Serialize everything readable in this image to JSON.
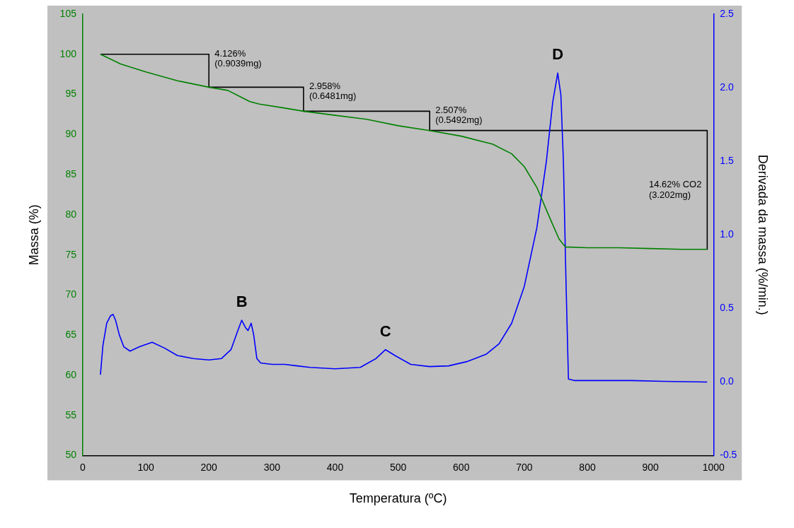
{
  "chart_data": {
    "type": "line",
    "xlabel": "Temperatura (ºC)",
    "ylabel": "Massa (%)",
    "y2label": "Derivada da massa (%/min.)",
    "xlim": [
      0,
      1000
    ],
    "xticks": [
      0,
      100,
      200,
      300,
      400,
      500,
      600,
      700,
      800,
      900,
      1000
    ],
    "ylim": [
      50,
      105
    ],
    "yticks": [
      50,
      55,
      60,
      65,
      70,
      75,
      80,
      85,
      90,
      95,
      100,
      105
    ],
    "y2lim": [
      -0.5,
      2.5
    ],
    "y2ticks": [
      {
        "value": -0.5,
        "label": "-0.5"
      },
      {
        "value": 0,
        "label": "0.0"
      },
      {
        "value": 0.5,
        "label": "0.5"
      },
      {
        "value": 1,
        "label": "1.0"
      },
      {
        "value": 1.5,
        "label": "1.5"
      },
      {
        "value": 2,
        "label": "2.0"
      },
      {
        "value": 2.5,
        "label": "2.5"
      }
    ],
    "grid": false,
    "legend": false,
    "marker": "none",
    "line_style": "solid",
    "series": [
      {
        "color": "#008000",
        "x": [
          28,
          60,
          100,
          150,
          200,
          230,
          250,
          265,
          280,
          320,
          350,
          400,
          450,
          500,
          550,
          600,
          650,
          680,
          700,
          720,
          740,
          755,
          765,
          800,
          850,
          900,
          950,
          990
        ],
        "values": [
          100,
          98.8,
          97.8,
          96.7,
          95.9,
          95.5,
          94.7,
          94.1,
          93.8,
          93.3,
          92.9,
          92.4,
          91.9,
          91.1,
          90.5,
          89.8,
          88.8,
          87.6,
          86,
          83.4,
          79.7,
          77,
          76,
          75.9,
          75.9,
          75.8,
          75.7,
          75.7
        ]
      },
      {
        "color": "#0000ff",
        "axis": "y2",
        "x": [
          28,
          32,
          38,
          44,
          48,
          52,
          58,
          65,
          75,
          90,
          110,
          130,
          150,
          175,
          200,
          220,
          235,
          245,
          252,
          258,
          262,
          267,
          271,
          276,
          282,
          300,
          320,
          340,
          360,
          400,
          440,
          465,
          480,
          495,
          520,
          550,
          580,
          610,
          640,
          660,
          680,
          700,
          720,
          735,
          745,
          753,
          758,
          762,
          766,
          770,
          780,
          820,
          870,
          920,
          990
        ],
        "values": [
          0.05,
          0.25,
          0.4,
          0.45,
          0.46,
          0.42,
          0.32,
          0.24,
          0.21,
          0.24,
          0.27,
          0.23,
          0.18,
          0.16,
          0.15,
          0.16,
          0.22,
          0.34,
          0.42,
          0.37,
          0.35,
          0.4,
          0.32,
          0.16,
          0.13,
          0.12,
          0.12,
          0.11,
          0.1,
          0.09,
          0.1,
          0.16,
          0.22,
          0.18,
          0.12,
          0.105,
          0.11,
          0.14,
          0.19,
          0.26,
          0.4,
          0.65,
          1.05,
          1.5,
          1.9,
          2.1,
          1.95,
          1.5,
          0.7,
          0.02,
          0.01,
          0.01,
          0.01,
          0.005,
          0.0
        ]
      },
      {
        "color": "#000000",
        "x": [
          28,
          200,
          200,
          350,
          350,
          550,
          550,
          990,
          990
        ],
        "values": [
          100,
          100,
          95.9,
          95.9,
          92.9,
          92.9,
          90.5,
          90.5,
          75.7
        ]
      }
    ],
    "annotations": [
      {
        "text": "4.126%\n(0.9039mg)",
        "x": 200,
        "y": 100
      },
      {
        "text": "2.958%\n(0.6481mg)",
        "x": 350,
        "y": 95.9
      },
      {
        "text": "2.507%\n(0.5492mg)",
        "x": 550,
        "y": 92.9
      },
      {
        "text": "14.62% CO2\n(3.202mg)",
        "x": 990,
        "y": 83.1
      },
      {
        "text": "B",
        "x": 252,
        "y": 66.9
      },
      {
        "text": "C",
        "x": 480,
        "y": 63.2
      },
      {
        "text": "D",
        "x": 753,
        "y": 97.7
      }
    ]
  }
}
